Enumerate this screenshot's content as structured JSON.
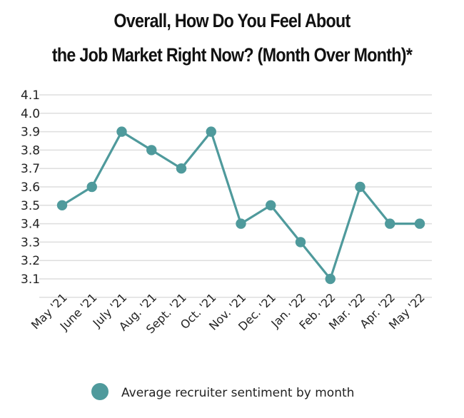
{
  "chart_data": {
    "type": "line",
    "title_lines": [
      "Overall, How Do You Feel About",
      "the Job Market Right Now? (Month Over Month)*"
    ],
    "categories": [
      "May '21",
      "June '21",
      "July '21",
      "Aug. '21",
      "Sept. '21",
      "Oct. '21",
      "Nov. '21",
      "Dec. '21",
      "Jan. '22",
      "Feb. '22",
      "Mar. '22",
      "Apr. '22",
      "May '22"
    ],
    "series": [
      {
        "name": "Average recruiter sentiment by month",
        "values": [
          3.5,
          3.6,
          3.9,
          3.8,
          3.7,
          3.9,
          3.4,
          3.5,
          3.3,
          3.1,
          3.6,
          3.4,
          3.4
        ]
      }
    ],
    "y_ticks": [
      "4.1",
      "4.0",
      "3.9",
      "3.8",
      "3.7",
      "3.6",
      "3.5",
      "3.4",
      "3.3",
      "3.2",
      "3.1"
    ],
    "ylim": [
      3.0,
      4.1
    ],
    "grid": true,
    "legend_position": "bottom-center",
    "colors": {
      "series": "#4f9a9c",
      "grid": "#dedede"
    }
  }
}
